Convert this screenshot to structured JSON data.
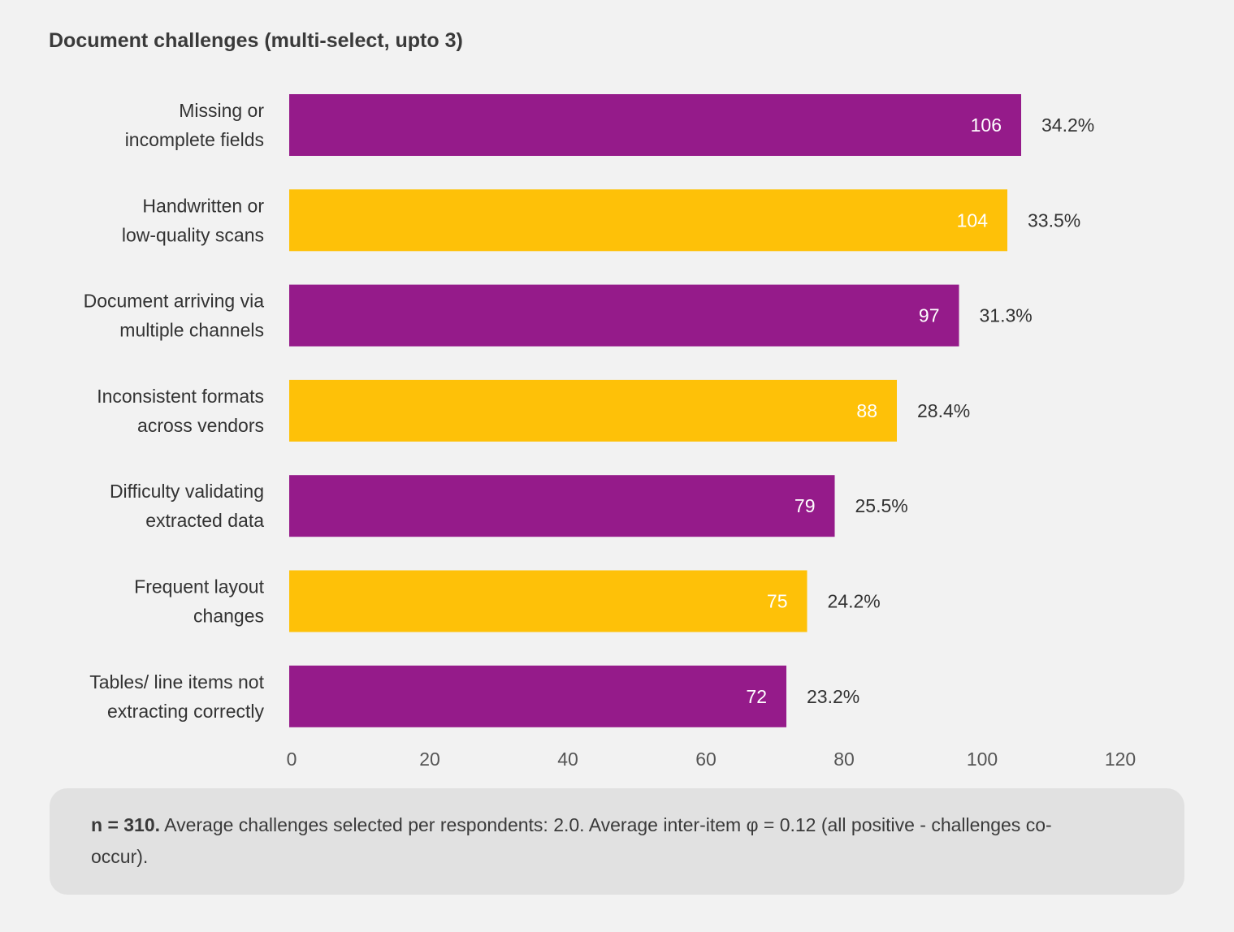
{
  "chart_data": {
    "type": "bar",
    "orientation": "horizontal",
    "title": "Document challenges (multi-select, upto 3)",
    "categories": [
      [
        "Missing or",
        "incomplete fields"
      ],
      [
        "Handwritten or",
        "low-quality scans"
      ],
      [
        "Document arriving via",
        "multiple channels"
      ],
      [
        "Inconsistent formats",
        "across vendors"
      ],
      [
        "Difficulty validating",
        "extracted data"
      ],
      [
        "Frequent layout",
        "changes"
      ],
      [
        "Tables/ line items not",
        "extracting correctly"
      ]
    ],
    "values": [
      106,
      104,
      97,
      88,
      79,
      75,
      72
    ],
    "percent_labels": [
      "34.2%",
      "33.5%",
      "31.3%",
      "28.4%",
      "25.5%",
      "24.2%",
      "23.2%"
    ],
    "bar_colors": [
      "#951b8a",
      "#fec108",
      "#951b8a",
      "#fec108",
      "#951b8a",
      "#fec108",
      "#951b8a"
    ],
    "xlim": [
      0,
      120
    ],
    "xticks": [
      0,
      20,
      40,
      60,
      80,
      100,
      120
    ],
    "grid": false,
    "legend": "none"
  },
  "note": {
    "bold": "n = 310.",
    "text": " Average challenges selected per respondents: 2.0. Average inter-item φ = 0.12 (all positive - challenges co-occur)."
  }
}
